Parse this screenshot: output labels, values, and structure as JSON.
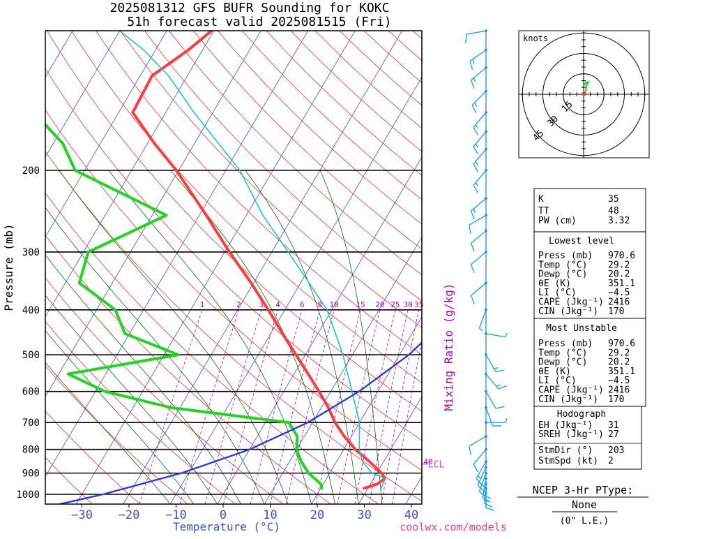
{
  "title": {
    "line1": "2025081312 GFS BUFR Sounding for KOKC",
    "line2": "51h forecast valid 2025081515 (Fri)"
  },
  "colors": {
    "temperature": "#ff3b3b",
    "dewpoint": "#22d422",
    "virtual_temp": "#18c8c8",
    "parcel": "#2a3ddb",
    "isotherm": "#3a4ef0",
    "dry_adiabat": "#ff3030",
    "moist_adiabat": "#0a6a0a",
    "mixing_ratio": "#b000c8",
    "lcl": "#ff3b8a",
    "axis_label_blue": "#3a4ef0",
    "wind_barb": "#1aa6ee"
  },
  "chart_data": {
    "type": "skew-t",
    "xlabel": "Temperature (°C)",
    "ylabel": "Pressure (mb)",
    "right_axis_label": "Mixing Ratio (g/kg)",
    "x_tick_labels": [
      "−30",
      "−20",
      "−10",
      "0",
      "10",
      "20",
      "30",
      "40"
    ],
    "x_ticks": [
      -30,
      -20,
      -10,
      0,
      10,
      20,
      30,
      40
    ],
    "y_tick_labels": [
      "200",
      "300",
      "400",
      "500",
      "600",
      "700",
      "800",
      "900",
      "1000"
    ],
    "y_ticks": [
      200,
      300,
      400,
      500,
      600,
      700,
      800,
      900,
      1000
    ],
    "pressure_range": [
      1050,
      100
    ],
    "mixing_ratio_labels": [
      "1",
      "2",
      "3",
      "4",
      "6",
      "8",
      "10",
      "15",
      "20",
      "25",
      "30",
      "35",
      "40"
    ],
    "mixing_ratio_values": [
      1,
      2,
      3,
      4,
      6,
      8,
      10,
      15,
      20,
      25,
      30,
      35,
      40
    ],
    "series": [
      {
        "name": "Temperature",
        "key": "temp",
        "p": [
          970.6,
          950,
          925,
          900,
          850,
          800,
          750,
          700,
          650,
          600,
          550,
          500,
          450,
          400,
          350,
          300,
          250,
          200,
          175,
          150,
          125,
          110,
          100
        ],
        "t": [
          29.2,
          31.5,
          32.4,
          31.0,
          27.0,
          22.5,
          18.5,
          14.8,
          11.5,
          7.5,
          3.0,
          -2.0,
          -7.5,
          -13.5,
          -20.5,
          -29.0,
          -38.5,
          -50.5,
          -58.5,
          -67.0,
          -67.5,
          -63.0,
          -60.5
        ]
      },
      {
        "name": "Dewpoint",
        "key": "dewp",
        "p": [
          970.6,
          950,
          925,
          900,
          850,
          800,
          750,
          700,
          650,
          600,
          550,
          500,
          450,
          400,
          350,
          300,
          250,
          200,
          175,
          150,
          140
        ],
        "t": [
          20.2,
          19.5,
          17.5,
          15.5,
          12.5,
          10.0,
          8.5,
          5.0,
          -22.0,
          -38.0,
          -48.0,
          -27.0,
          -41.0,
          -46.0,
          -57.0,
          -59.0,
          -47.0,
          -72.0,
          -78.0,
          -88.0,
          -88.5
        ]
      },
      {
        "name": "Virtual Temperature",
        "key": "tv",
        "p": [
          970.6,
          925,
          900,
          850,
          800,
          700,
          600,
          500,
          400,
          300,
          250,
          200,
          150,
          125,
          110,
          100
        ],
        "t": [
          32.8,
          32.5,
          29.0,
          25.5,
          23.3,
          20.0,
          14.5,
          8.0,
          -1.0,
          -16.5,
          -26.5,
          -37.0,
          -54.0,
          -64.0,
          -72.5,
          -80.0
        ]
      },
      {
        "name": "Parcel",
        "key": "parcel",
        "p": [
          1050,
          1000,
          900,
          800,
          700,
          600,
          500,
          400,
          300,
          250
        ],
        "t": [
          -33.5,
          -25.5,
          -11.5,
          0.0,
          9.0,
          16.0,
          22.0,
          26.5,
          28.5,
          33.0
        ]
      }
    ],
    "lcl_label": "LCL",
    "lcl_pressure": 860,
    "hodograph": {
      "unit_label": "knots",
      "ring_labels": [
        "15",
        "30",
        "45"
      ],
      "rings_kt": [
        15,
        30,
        45
      ],
      "trace_kt": [
        [
          0.3,
          -1.1
        ],
        [
          0.6,
          -0.4
        ],
        [
          1.2,
          0.9
        ],
        [
          1.7,
          3.4
        ],
        [
          2.0,
          5.8
        ],
        [
          2.7,
          7.7
        ],
        [
          3.5,
          8.8
        ],
        [
          3.6,
          9.0
        ],
        [
          1.8,
          8.9
        ],
        [
          0.5,
          6.8
        ]
      ],
      "storm_motion_kt": [
        0.3,
        0.3
      ]
    },
    "wind_profile": [
      {
        "p": 970,
        "dir": 180,
        "spd": 10
      },
      {
        "p": 950,
        "dir": 185,
        "spd": 15
      },
      {
        "p": 925,
        "dir": 190,
        "spd": 20
      },
      {
        "p": 900,
        "dir": 200,
        "spd": 20
      },
      {
        "p": 875,
        "dir": 205,
        "spd": 20
      },
      {
        "p": 850,
        "dir": 210,
        "spd": 15
      },
      {
        "p": 800,
        "dir": 220,
        "spd": 10
      },
      {
        "p": 750,
        "dir": 240,
        "spd": 10
      },
      {
        "p": 700,
        "dir": 90,
        "spd": 5
      },
      {
        "p": 650,
        "dir": 160,
        "spd": 10
      },
      {
        "p": 600,
        "dir": 150,
        "spd": 10
      },
      {
        "p": 550,
        "dir": 140,
        "spd": 15
      },
      {
        "p": 500,
        "dir": 150,
        "spd": 15
      },
      {
        "p": 450,
        "dir": 100,
        "spd": 5
      },
      {
        "p": 400,
        "dir": 200,
        "spd": 5
      },
      {
        "p": 350,
        "dir": 230,
        "spd": 10
      },
      {
        "p": 300,
        "dir": 230,
        "spd": 10
      },
      {
        "p": 270,
        "dir": 230,
        "spd": 10
      },
      {
        "p": 250,
        "dir": 240,
        "spd": 10
      },
      {
        "p": 230,
        "dir": 230,
        "spd": 15
      },
      {
        "p": 200,
        "dir": 220,
        "spd": 15
      },
      {
        "p": 180,
        "dir": 220,
        "spd": 15
      },
      {
        "p": 165,
        "dir": 220,
        "spd": 15
      },
      {
        "p": 150,
        "dir": 220,
        "spd": 15
      },
      {
        "p": 135,
        "dir": 225,
        "spd": 15
      },
      {
        "p": 120,
        "dir": 230,
        "spd": 15
      },
      {
        "p": 110,
        "dir": 235,
        "spd": 15
      },
      {
        "p": 100,
        "dir": 260,
        "spd": 10
      }
    ]
  },
  "indices": {
    "K": {
      "label": "K",
      "value": "35"
    },
    "TT": {
      "label": "TT",
      "value": "48"
    },
    "PW": {
      "label": "PW (cm)",
      "value": "3.32"
    },
    "lowest_title": "Lowest level",
    "lowest": [
      {
        "label": "Press (mb)",
        "value": "970.6"
      },
      {
        "label": "Temp (°C)",
        "value": "29.2"
      },
      {
        "label": "Dewp (°C)",
        "value": "20.2"
      },
      {
        "label": "θE (K)",
        "value": "351.1"
      },
      {
        "label": "LI (°C)",
        "value": "−4.5"
      },
      {
        "label": "CAPE (Jkg⁻¹)",
        "value": "2416"
      },
      {
        "label": "CIN (Jkg⁻¹)",
        "value": "170"
      }
    ],
    "mu_title": "Most Unstable",
    "mu": [
      {
        "label": "Press (mb)",
        "value": "970.6"
      },
      {
        "label": "Temp (°C)",
        "value": "29.2"
      },
      {
        "label": "Dewp (°C)",
        "value": "20.2"
      },
      {
        "label": "θE (K)",
        "value": "351.1"
      },
      {
        "label": "LI (°C)",
        "value": "−4.5"
      },
      {
        "label": "CAPE (Jkg⁻¹)",
        "value": "2416"
      },
      {
        "label": "CIN (Jkg⁻¹)",
        "value": "170"
      }
    ],
    "hodo_title": "Hodograph",
    "hodo": [
      {
        "label": "EH (Jkg⁻¹)",
        "value": "31"
      },
      {
        "label": "SREH (Jkg⁻¹)",
        "value": "27"
      },
      {
        "label": "StmDir (°)",
        "value": "203"
      },
      {
        "label": "StmSpd (kt)",
        "value": "2"
      }
    ]
  },
  "ptype": {
    "title": "NCEP 3-Hr PType:",
    "value": "None",
    "amount": "(0\" L.E.)"
  },
  "footer": "coolwx.com/models"
}
